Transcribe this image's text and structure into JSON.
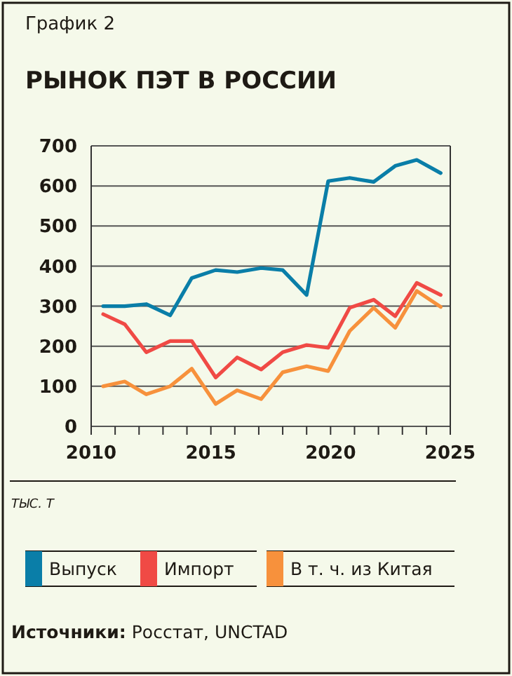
{
  "chart_data": {
    "type": "line",
    "title": "РЫНОК ПЭТ В РОССИИ",
    "subtitle": "График 2",
    "ylabel": "ТЫС. Т",
    "annotations": [
      "Источники: Росстат, UNCTAD"
    ],
    "x": [
      2010.5,
      2011.4,
      2012.3,
      2013.3,
      2014.2,
      2015.2,
      2016.1,
      2017.1,
      2018.0,
      2019.0,
      2019.9,
      2020.8,
      2021.8,
      2022.7,
      2023.6,
      2024.6
    ],
    "series": [
      {
        "name": "Выпуск",
        "color": "#0a7ea8",
        "values": [
          300,
          300,
          305,
          277,
          370,
          390,
          385,
          395,
          390,
          328,
          612,
          620,
          610,
          650,
          665,
          632
        ]
      },
      {
        "name": "Импорт",
        "color": "#f04a45",
        "values": [
          280,
          255,
          185,
          213,
          213,
          122,
          172,
          142,
          185,
          203,
          196,
          296,
          316,
          275,
          358,
          328
        ]
      },
      {
        "name": "В т. ч. из Китая",
        "color": "#f7913c",
        "values": [
          100,
          112,
          80,
          100,
          144,
          56,
          90,
          68,
          135,
          150,
          138,
          238,
          296,
          246,
          338,
          298
        ]
      }
    ],
    "xlim": [
      2010,
      2025
    ],
    "xticks": [
      2010,
      {
        "value": 2011,
        "label": null
      },
      {
        "value": 2012,
        "label": null
      },
      {
        "value": 2013,
        "label": null
      },
      {
        "value": 2014,
        "label": null
      },
      2015,
      {
        "value": 2016,
        "label": null
      },
      {
        "value": 2017,
        "label": null
      },
      {
        "value": 2018,
        "label": null
      },
      {
        "value": 2019,
        "label": null
      },
      2020,
      {
        "value": 2021,
        "label": null
      },
      {
        "value": 2022,
        "label": null
      },
      {
        "value": 2023,
        "label": null
      },
      {
        "value": 2024,
        "label": null
      },
      2025
    ],
    "ylim": [
      0,
      700
    ],
    "yticks": [
      0,
      100,
      200,
      300,
      400,
      500,
      600,
      700
    ],
    "grid": "y",
    "legend": "bottom",
    "marker": "none",
    "line_style": "solid"
  }
}
